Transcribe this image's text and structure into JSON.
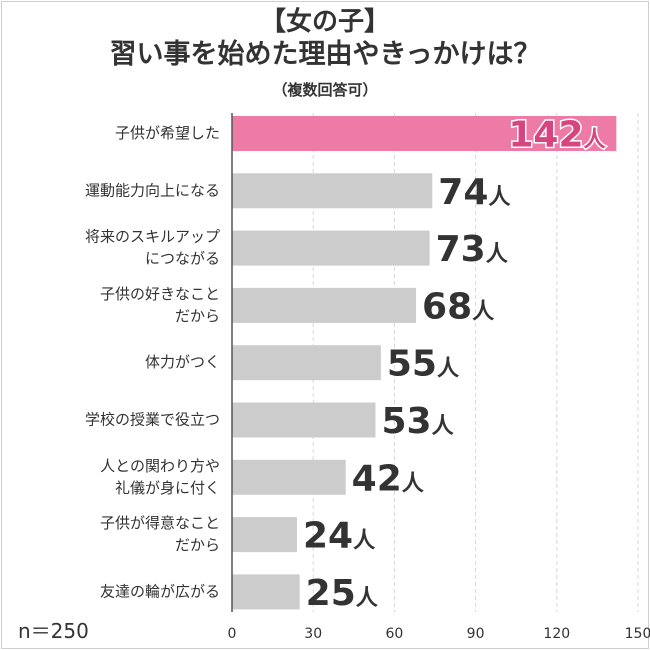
{
  "title_line1": "【女の子】",
  "title_line2": "習い事を始めた理由やきっかけは？",
  "subtitle": "（複数回答可）",
  "sample_size": "n＝250",
  "chart_data": {
    "type": "bar",
    "orientation": "horizontal",
    "unit": "人",
    "categories": [
      [
        "子供が希望した"
      ],
      [
        "運動能力向上になる"
      ],
      [
        "将来のスキルアップ",
        "につながる"
      ],
      [
        "子供の好きなこと",
        "だから"
      ],
      [
        "体力がつく"
      ],
      [
        "学校の授業で役立つ"
      ],
      [
        "人との関わり方や",
        "礼儀が身に付く"
      ],
      [
        "子供が得意なこと",
        "だから"
      ],
      [
        "友達の輪が広がる"
      ]
    ],
    "values": [
      142,
      74,
      73,
      68,
      55,
      53,
      42,
      24,
      25
    ],
    "xlim": [
      0,
      150
    ],
    "xticks": [
      0,
      30,
      60,
      90,
      120,
      150
    ],
    "grid": true,
    "highlight_index": 0,
    "colors": {
      "highlight_bar": "#ee7aa6",
      "highlight_label": "#d6457f",
      "bar": "#cccccc",
      "label": "#333333",
      "grid": "#d8d8d8",
      "axis": "#555555"
    }
  }
}
